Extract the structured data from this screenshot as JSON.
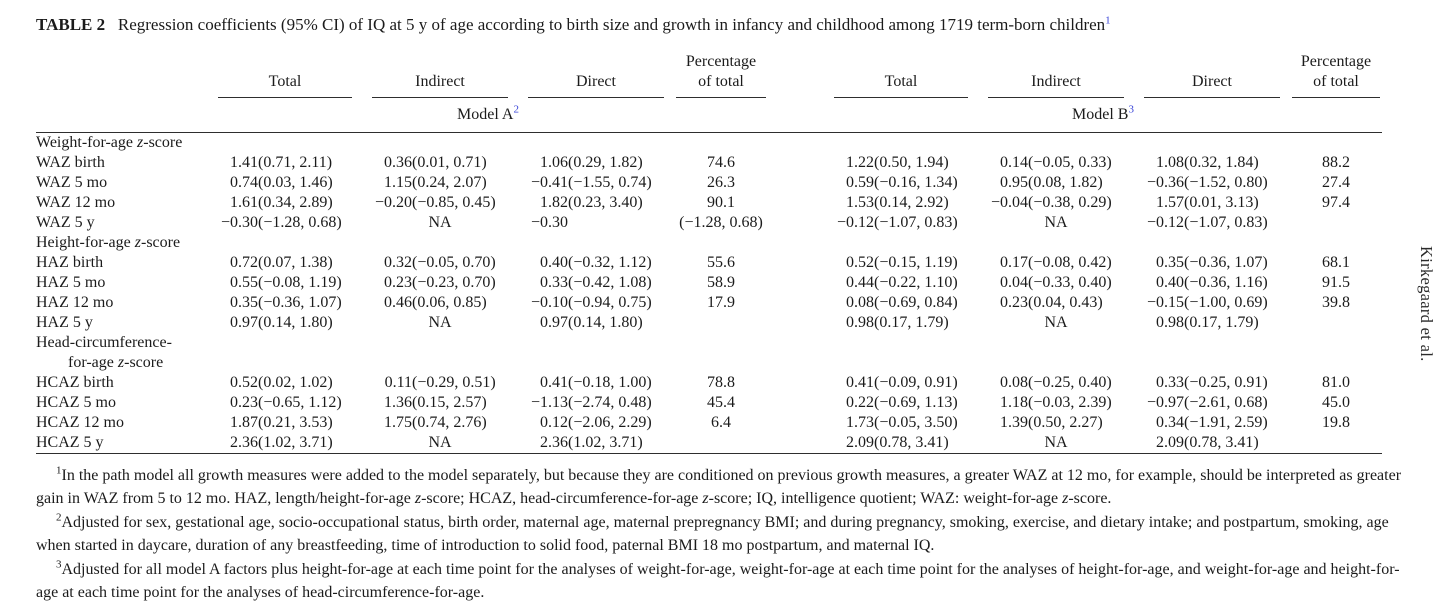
{
  "page": {
    "title_html": "<b>TABLE 2</b>&nbsp;&nbsp; Regression coefficients (95% CI) of IQ at 5 y of age according to birth size and growth in infancy and childhood among 1719 term-born children<sup class=\"blue\">1</sup>",
    "sidebar_attribution": "Kirkegaard et al."
  },
  "table": {
    "col_total": "Total",
    "col_indirect": "Indirect",
    "col_direct": "Direct",
    "col_pct_html": "Percentage<br>of total",
    "model_a_html": "Model A<sup class=\"blue\">2</sup>",
    "model_b_html": "Model B<sup class=\"blue\">3</sup>",
    "rows": [
      {
        "section_html": "Weight-for-age <i>z</i>-score"
      },
      {
        "label": "WAZ birth",
        "a": {
          "t": "1.41",
          "t_ci": "(0.71, 2.11)",
          "i": "0.36",
          "i_ci": "(0.01, 0.71)",
          "d": "1.06",
          "d_ci": "(0.29, 1.82)",
          "p": "74.6"
        },
        "b": {
          "t": "1.22",
          "t_ci": "(0.50, 1.94)",
          "i": "0.14",
          "i_ci": "(−0.05, 0.33)",
          "d": "1.08",
          "d_ci": "(0.32, 1.84)",
          "p": "88.2"
        }
      },
      {
        "label": "WAZ 5 mo",
        "a": {
          "t": "0.74",
          "t_ci": "(0.03, 1.46)",
          "i": "1.15",
          "i_ci": "(0.24, 2.07)",
          "d": "−0.41",
          "d_ci": "(−1.55, 0.74)",
          "p": "26.3"
        },
        "b": {
          "t": "0.59",
          "t_ci": "(−0.16, 1.34)",
          "i": "0.95",
          "i_ci": "(0.08, 1.82)",
          "d": "−0.36",
          "d_ci": "(−1.52, 0.80)",
          "p": "27.4"
        }
      },
      {
        "label": "WAZ 12 mo",
        "a": {
          "t": "1.61",
          "t_ci": "(0.34, 2.89)",
          "i": "−0.20",
          "i_ci": "(−0.85, 0.45)",
          "d": "1.82",
          "d_ci": "(0.23, 3.40)",
          "p": "90.1"
        },
        "b": {
          "t": "1.53",
          "t_ci": "(0.14, 2.92)",
          "i": "−0.04",
          "i_ci": "(−0.38, 0.29)",
          "d": "1.57",
          "d_ci": "(0.01, 3.13)",
          "p": "97.4"
        }
      },
      {
        "label": "WAZ 5 y",
        "a": {
          "t": "−0.30",
          "t_ci": "(−1.28, 0.68)",
          "i": "NA",
          "d": "−0.30",
          "d_ci": "",
          "p": "(−1.28, 0.68)"
        },
        "b": {
          "t": "−0.12",
          "t_ci": "(−1.07, 0.83)",
          "i": "NA",
          "d": "−0.12",
          "d_ci": "(−1.07, 0.83)",
          "p": ""
        }
      },
      {
        "section_html": "Height-for-age <i>z</i>-score"
      },
      {
        "label": "HAZ birth",
        "a": {
          "t": "0.72",
          "t_ci": "(0.07, 1.38)",
          "i": "0.32",
          "i_ci": "(−0.05, 0.70)",
          "d": "0.40",
          "d_ci": "(−0.32, 1.12)",
          "p": "55.6"
        },
        "b": {
          "t": "0.52",
          "t_ci": "(−0.15, 1.19)",
          "i": "0.17",
          "i_ci": "(−0.08, 0.42)",
          "d": "0.35",
          "d_ci": "(−0.36, 1.07)",
          "p": "68.1"
        }
      },
      {
        "label": "HAZ 5 mo",
        "a": {
          "t": "0.55",
          "t_ci": "(−0.08, 1.19)",
          "i": "0.23",
          "i_ci": "(−0.23, 0.70)",
          "d": "0.33",
          "d_ci": "(−0.42, 1.08)",
          "p": "58.9"
        },
        "b": {
          "t": "0.44",
          "t_ci": "(−0.22, 1.10)",
          "i": "0.04",
          "i_ci": "(−0.33, 0.40)",
          "d": "0.40",
          "d_ci": "(−0.36, 1.16)",
          "p": "91.5"
        }
      },
      {
        "label": "HAZ 12 mo",
        "a": {
          "t": "0.35",
          "t_ci": "(−0.36, 1.07)",
          "i": "0.46",
          "i_ci": "(0.06, 0.85)",
          "d": "−0.10",
          "d_ci": "(−0.94, 0.75)",
          "p": "17.9"
        },
        "b": {
          "t": "0.08",
          "t_ci": "(−0.69, 0.84)",
          "i": "0.23",
          "i_ci": "(0.04, 0.43)",
          "d": "−0.15",
          "d_ci": "(−1.00, 0.69)",
          "p": "39.8"
        }
      },
      {
        "label": "HAZ 5 y",
        "a": {
          "t": "0.97",
          "t_ci": "(0.14, 1.80)",
          "i": "NA",
          "d": "0.97",
          "d_ci": "(0.14, 1.80)",
          "p": ""
        },
        "b": {
          "t": "0.98",
          "t_ci": "(0.17, 1.79)",
          "i": "NA",
          "d": "0.98",
          "d_ci": "(0.17, 1.79)",
          "p": ""
        }
      },
      {
        "section_html": "Head-circumference-<br><span class=\"ind2\">for-age <i>z</i>-score</span>"
      },
      {
        "label": "HCAZ birth",
        "a": {
          "t": "0.52",
          "t_ci": "(0.02, 1.02)",
          "i": "0.11",
          "i_ci": "(−0.29, 0.51)",
          "d": "0.41",
          "d_ci": "(−0.18, 1.00)",
          "p": "78.8"
        },
        "b": {
          "t": "0.41",
          "t_ci": "(−0.09, 0.91)",
          "i": "0.08",
          "i_ci": "(−0.25, 0.40)",
          "d": "0.33",
          "d_ci": "(−0.25, 0.91)",
          "p": "81.0"
        }
      },
      {
        "label": "HCAZ 5 mo",
        "a": {
          "t": "0.23",
          "t_ci": "(−0.65, 1.12)",
          "i": "1.36",
          "i_ci": "(0.15, 2.57)",
          "d": "−1.13",
          "d_ci": "(−2.74, 0.48)",
          "p": "45.4"
        },
        "b": {
          "t": "0.22",
          "t_ci": "(−0.69, 1.13)",
          "i": "1.18",
          "i_ci": "(−0.03, 2.39)",
          "d": "−0.97",
          "d_ci": "(−2.61, 0.68)",
          "p": "45.0"
        }
      },
      {
        "label": "HCAZ 12 mo",
        "a": {
          "t": "1.87",
          "t_ci": "(0.21, 3.53)",
          "i": "1.75",
          "i_ci": "(0.74, 2.76)",
          "d": "0.12",
          "d_ci": "(−2.06, 2.29)",
          "p": "6.4"
        },
        "b": {
          "t": "1.73",
          "t_ci": "(−0.05, 3.50)",
          "i": "1.39",
          "i_ci": "(0.50, 2.27)",
          "d": "0.34",
          "d_ci": "(−1.91, 2.59)",
          "p": "19.8"
        }
      },
      {
        "label": "HCAZ 5 y",
        "a": {
          "t": "2.36",
          "t_ci": "(1.02, 3.71)",
          "i": "NA",
          "d": "2.36",
          "d_ci": "(1.02, 3.71)",
          "p": ""
        },
        "b": {
          "t": "2.09",
          "t_ci": "(0.78, 3.41)",
          "i": "NA",
          "d": "2.09",
          "d_ci": "(0.78, 3.41)",
          "p": ""
        }
      }
    ]
  },
  "footnotes": [
    {
      "html": "<sup>1</sup>In the path model all growth measures were added to the model separately, but because they are conditioned on previous growth measures, a greater WAZ at 12 mo, for example, should be interpreted as greater gain in WAZ from 5 to 12 mo. HAZ, length/height-for-age <i>z</i>-score; HCAZ, head-circumference-for-age <i>z</i>-score; IQ, intelligence quotient; WAZ: weight-for-age <i>z</i>-score."
    },
    {
      "html": "<sup>2</sup>Adjusted for sex, gestational age, socio-occupational status, birth order, maternal age, maternal prepregnancy BMI; and during pregnancy, smoking, exercise, and dietary intake; and postpartum, smoking, age when started in daycare, duration of any breastfeeding, time of introduction to solid food, paternal BMI 18 mo postpartum, and maternal IQ."
    },
    {
      "html": "<sup>3</sup>Adjusted for all model A factors plus height-for-age at each time point for the analyses of weight-for-age, weight-for-age at each time point for the analyses of height-for-age, and weight-for-age and height-for-age at each time point for the analyses of head-circumference-for-age."
    }
  ]
}
